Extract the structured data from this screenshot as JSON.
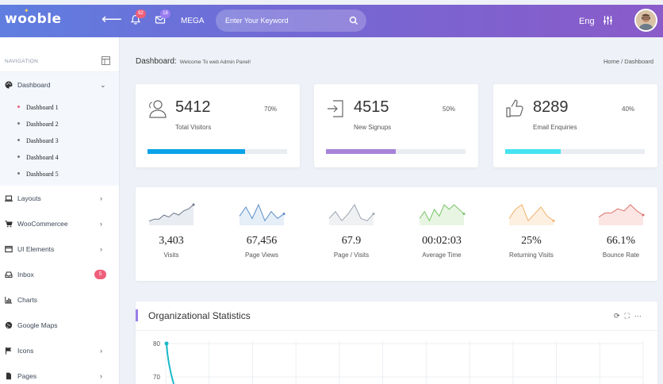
{
  "header": {
    "logo": "wooble",
    "notifications_count": "92",
    "messages_count": "18",
    "mega_label": "MEGA",
    "search_placeholder": "Enter Your Keyword",
    "language": "Eng"
  },
  "sidebar": {
    "nav_title": "NAVIGATION",
    "dashboard": {
      "label": "Dashboard",
      "subitems": [
        "Dashboard 1",
        "Dashboard 2",
        "Dashboard 3",
        "Dashboard 4",
        "Dashboard 5"
      ]
    },
    "items": [
      {
        "label": "Layouts",
        "icon": "laptop-icon",
        "has_chevron": true
      },
      {
        "label": "WooCommercee",
        "icon": "cart-icon",
        "has_chevron": true
      },
      {
        "label": "UI Elements",
        "icon": "window-icon",
        "has_chevron": true
      },
      {
        "label": "Inbox",
        "icon": "inbox-icon",
        "badge": "5"
      },
      {
        "label": "Charts",
        "icon": "bar-chart-icon"
      },
      {
        "label": "Google Maps",
        "icon": "globe-icon"
      },
      {
        "label": "Icons",
        "icon": "flag-icon",
        "has_chevron": true
      },
      {
        "label": "Pages",
        "icon": "page-icon",
        "has_chevron": true
      }
    ]
  },
  "page": {
    "title": "Dashboard:",
    "subtitle": "Welcome To web Admin Panel!",
    "breadcrumb": [
      "Home",
      "/",
      "Dashboard"
    ]
  },
  "stats": [
    {
      "value": "5412",
      "label": "Total Visitors",
      "percent": "70%",
      "progress": 0.7,
      "color": "#0aa2e8",
      "icon": "users-icon"
    },
    {
      "value": "4515",
      "label": "New Signups",
      "percent": "50%",
      "progress": 0.5,
      "color": "#a683d8",
      "icon": "sign-in-icon"
    },
    {
      "value": "8289",
      "label": "Email Enquiries",
      "percent": "40%",
      "progress": 0.4,
      "color": "#45e3f0",
      "icon": "thumbs-up-icon"
    }
  ],
  "sparklines": [
    {
      "value": "3,403",
      "label": "Visits",
      "color": "#6b7787",
      "fill": "#e9ecf1",
      "series": [
        2,
        3,
        3,
        5,
        4,
        6,
        5,
        7,
        8,
        10
      ]
    },
    {
      "value": "67,456",
      "label": "Page Views",
      "color": "#5b8ec9",
      "fill": "#e6eef8",
      "series": [
        4,
        8,
        3,
        9,
        2,
        6,
        3,
        5
      ]
    },
    {
      "value": "67.9",
      "label": "Page / Visits",
      "color": "#9aa3ae",
      "fill": "#f0f1f3",
      "series": [
        3,
        6,
        2,
        5,
        9,
        3,
        2,
        5
      ]
    },
    {
      "value": "00:02:03",
      "label": "Average Time",
      "color": "#7cc46b",
      "fill": "#e8f5e3",
      "series": [
        3,
        6,
        2,
        7,
        4,
        9,
        7,
        9,
        7,
        5
      ]
    },
    {
      "value": "25%",
      "label": "Returning Visits",
      "color": "#f0b26b",
      "fill": "#fdf0e1",
      "series": [
        3,
        7,
        9,
        2,
        5,
        8,
        4,
        2
      ]
    },
    {
      "value": "66.1%",
      "label": "Bounce Rate",
      "color": "#e0726c",
      "fill": "#fbe6e4",
      "series": [
        4,
        6,
        6,
        8,
        7,
        10,
        7,
        5
      ]
    }
  ],
  "org_stats": {
    "title": "Organizational Statistics",
    "y_ticks": [
      "80",
      "70"
    ]
  }
}
